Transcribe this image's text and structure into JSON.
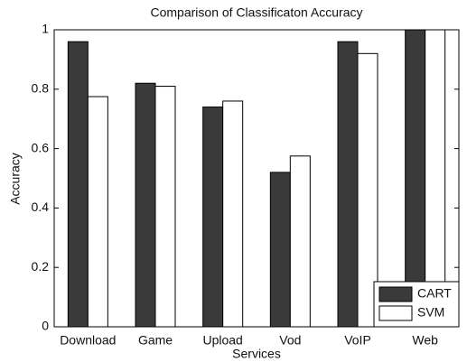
{
  "chart_data": {
    "type": "bar",
    "title": "Comparison of Classificaton Accuracy",
    "x_label": "Services",
    "y_label": "Accuracy",
    "categories": [
      "Download",
      "Game",
      "Upload",
      "Vod",
      "VoIP",
      "Web"
    ],
    "series": [
      {
        "name": "CART",
        "color": "#3a3a3a",
        "values": [
          0.96,
          0.82,
          0.74,
          0.52,
          0.96,
          1.0
        ]
      },
      {
        "name": "SVM",
        "color": "#ffffff",
        "values": [
          0.775,
          0.81,
          0.76,
          0.575,
          0.92,
          1.0
        ]
      }
    ],
    "ylim": [
      0,
      1
    ],
    "yticks": [
      0,
      0.2,
      0.4,
      0.6,
      0.8,
      1
    ],
    "legend": "lower right"
  }
}
